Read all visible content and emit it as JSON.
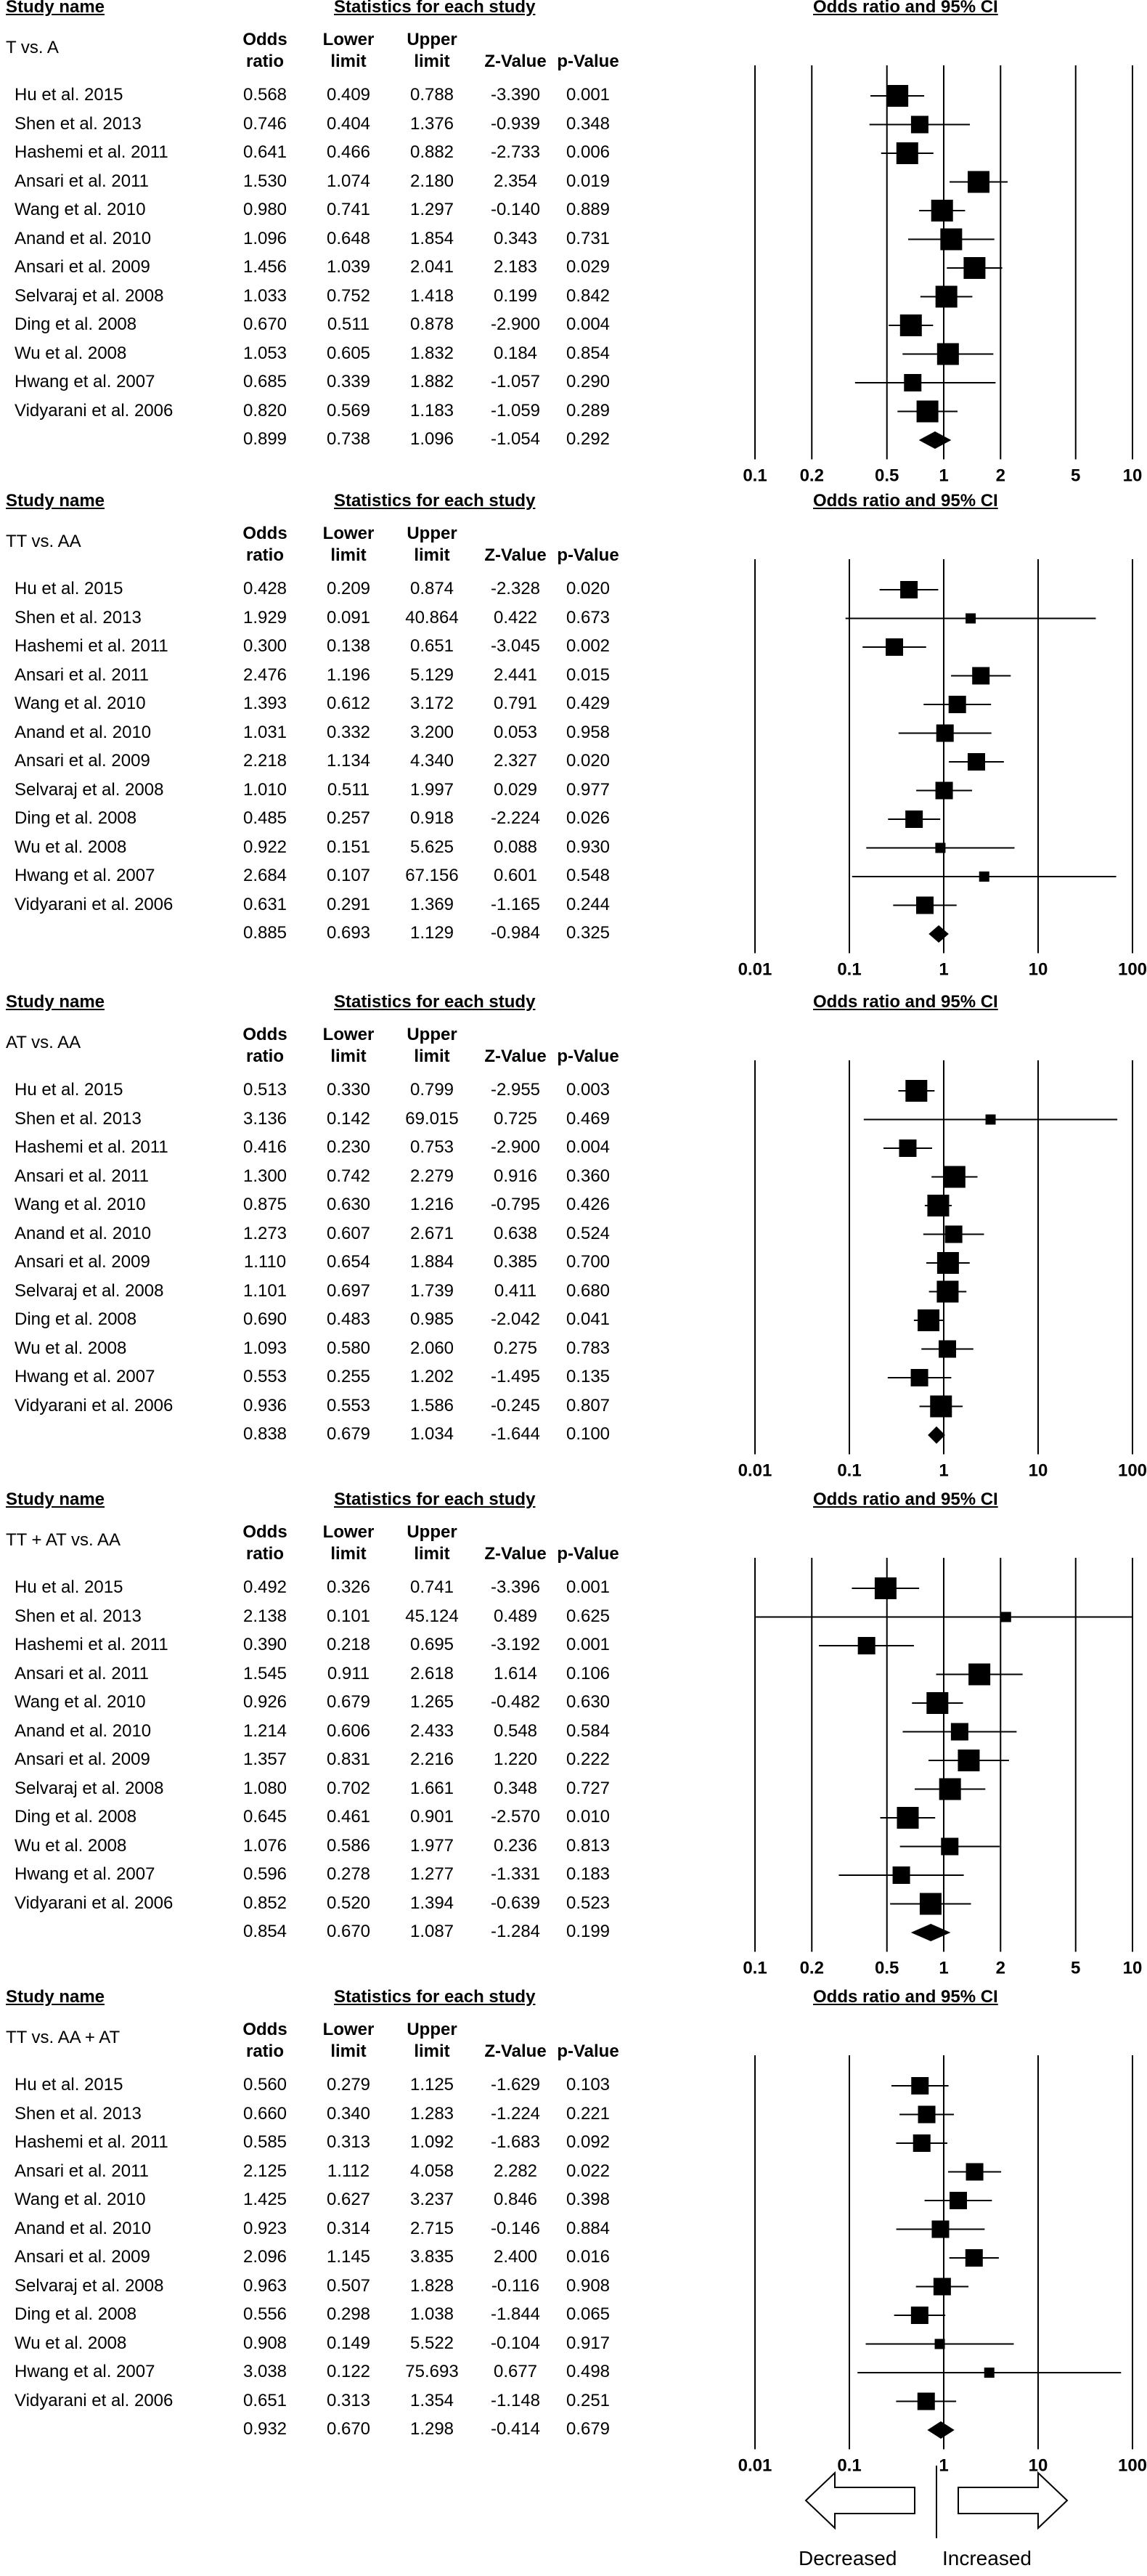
{
  "headers": {
    "study_name": "Study name",
    "stats": "Statistics for each study",
    "plot": "Odds ratio and 95% CI",
    "odds1": "Odds",
    "odds2": "ratio",
    "lower1": "Lower",
    "lower2": "limit",
    "upper1": "Upper",
    "upper2": "limit",
    "z": "Z-Value",
    "p": "p-Value"
  },
  "legend": {
    "decreased": "Decreased",
    "increased": "Increased"
  },
  "chart_data": [
    {
      "type": "forest",
      "comparison": "T vs. A",
      "scale": "log",
      "xlim": [
        0.1,
        10
      ],
      "ticks": [
        "0.1",
        "0.2",
        "0.5",
        "1",
        "2",
        "5",
        "10"
      ],
      "studies": [
        {
          "name": "Hu et al. 2015",
          "or": "0.568",
          "lo": "0.409",
          "hi": "0.788",
          "z": "-3.390",
          "p": "0.001"
        },
        {
          "name": "Shen et al. 2013",
          "or": "0.746",
          "lo": "0.404",
          "hi": "1.376",
          "z": "-0.939",
          "p": "0.348"
        },
        {
          "name": "Hashemi et al. 2011",
          "or": "0.641",
          "lo": "0.466",
          "hi": "0.882",
          "z": "-2.733",
          "p": "0.006"
        },
        {
          "name": "Ansari et al. 2011",
          "or": "1.530",
          "lo": "1.074",
          "hi": "2.180",
          "z": "2.354",
          "p": "0.019"
        },
        {
          "name": "Wang et al. 2010",
          "or": "0.980",
          "lo": "0.741",
          "hi": "1.297",
          "z": "-0.140",
          "p": "0.889"
        },
        {
          "name": "Anand et al. 2010",
          "or": "1.096",
          "lo": "0.648",
          "hi": "1.854",
          "z": "0.343",
          "p": "0.731"
        },
        {
          "name": "Ansari et al. 2009",
          "or": "1.456",
          "lo": "1.039",
          "hi": "2.041",
          "z": "2.183",
          "p": "0.029"
        },
        {
          "name": "Selvaraj et al. 2008",
          "or": "1.033",
          "lo": "0.752",
          "hi": "1.418",
          "z": "0.199",
          "p": "0.842"
        },
        {
          "name": "Ding et al. 2008",
          "or": "0.670",
          "lo": "0.511",
          "hi": "0.878",
          "z": "-2.900",
          "p": "0.004"
        },
        {
          "name": "Wu et al. 2008",
          "or": "1.053",
          "lo": "0.605",
          "hi": "1.832",
          "z": "0.184",
          "p": "0.854"
        },
        {
          "name": "Hwang et al. 2007",
          "or": "0.685",
          "lo": "0.339",
          "hi": "1.882",
          "z": "-1.057",
          "p": "0.290"
        },
        {
          "name": "Vidyarani et al. 2006",
          "or": "0.820",
          "lo": "0.569",
          "hi": "1.183",
          "z": "-1.059",
          "p": "0.289"
        }
      ],
      "pooled": {
        "or": "0.899",
        "lo": "0.738",
        "hi": "1.096",
        "z": "-1.054",
        "p": "0.292"
      }
    },
    {
      "type": "forest",
      "comparison": "TT vs. AA",
      "scale": "log",
      "xlim": [
        0.01,
        100
      ],
      "ticks": [
        "0.01",
        "0.1",
        "1",
        "10",
        "100"
      ],
      "studies": [
        {
          "name": "Hu et al. 2015",
          "or": "0.428",
          "lo": "0.209",
          "hi": "0.874",
          "z": "-2.328",
          "p": "0.020"
        },
        {
          "name": "Shen et al. 2013",
          "or": "1.929",
          "lo": "0.091",
          "hi": "40.864",
          "z": "0.422",
          "p": "0.673"
        },
        {
          "name": "Hashemi et al. 2011",
          "or": "0.300",
          "lo": "0.138",
          "hi": "0.651",
          "z": "-3.045",
          "p": "0.002"
        },
        {
          "name": "Ansari et al. 2011",
          "or": "2.476",
          "lo": "1.196",
          "hi": "5.129",
          "z": "2.441",
          "p": "0.015"
        },
        {
          "name": "Wang et al. 2010",
          "or": "1.393",
          "lo": "0.612",
          "hi": "3.172",
          "z": "0.791",
          "p": "0.429"
        },
        {
          "name": "Anand et al. 2010",
          "or": "1.031",
          "lo": "0.332",
          "hi": "3.200",
          "z": "0.053",
          "p": "0.958"
        },
        {
          "name": "Ansari et al. 2009",
          "or": "2.218",
          "lo": "1.134",
          "hi": "4.340",
          "z": "2.327",
          "p": "0.020"
        },
        {
          "name": "Selvaraj et al. 2008",
          "or": "1.010",
          "lo": "0.511",
          "hi": "1.997",
          "z": "0.029",
          "p": "0.977"
        },
        {
          "name": "Ding et al. 2008",
          "or": "0.485",
          "lo": "0.257",
          "hi": "0.918",
          "z": "-2.224",
          "p": "0.026"
        },
        {
          "name": "Wu et al. 2008",
          "or": "0.922",
          "lo": "0.151",
          "hi": "5.625",
          "z": "0.088",
          "p": "0.930"
        },
        {
          "name": "Hwang et al. 2007",
          "or": "2.684",
          "lo": "0.107",
          "hi": "67.156",
          "z": "0.601",
          "p": "0.548"
        },
        {
          "name": "Vidyarani et al. 2006",
          "or": "0.631",
          "lo": "0.291",
          "hi": "1.369",
          "z": "-1.165",
          "p": "0.244"
        }
      ],
      "pooled": {
        "or": "0.885",
        "lo": "0.693",
        "hi": "1.129",
        "z": "-0.984",
        "p": "0.325"
      }
    },
    {
      "type": "forest",
      "comparison": "AT vs. AA",
      "scale": "log",
      "xlim": [
        0.01,
        100
      ],
      "ticks": [
        "0.01",
        "0.1",
        "1",
        "10",
        "100"
      ],
      "studies": [
        {
          "name": "Hu et al. 2015",
          "or": "0.513",
          "lo": "0.330",
          "hi": "0.799",
          "z": "-2.955",
          "p": "0.003"
        },
        {
          "name": "Shen et al. 2013",
          "or": "3.136",
          "lo": "0.142",
          "hi": "69.015",
          "z": "0.725",
          "p": "0.469"
        },
        {
          "name": "Hashemi et al. 2011",
          "or": "0.416",
          "lo": "0.230",
          "hi": "0.753",
          "z": "-2.900",
          "p": "0.004"
        },
        {
          "name": "Ansari et al. 2011",
          "or": "1.300",
          "lo": "0.742",
          "hi": "2.279",
          "z": "0.916",
          "p": "0.360"
        },
        {
          "name": "Wang et al. 2010",
          "or": "0.875",
          "lo": "0.630",
          "hi": "1.216",
          "z": "-0.795",
          "p": "0.426"
        },
        {
          "name": "Anand et al. 2010",
          "or": "1.273",
          "lo": "0.607",
          "hi": "2.671",
          "z": "0.638",
          "p": "0.524"
        },
        {
          "name": "Ansari et al. 2009",
          "or": "1.110",
          "lo": "0.654",
          "hi": "1.884",
          "z": "0.385",
          "p": "0.700"
        },
        {
          "name": "Selvaraj et al. 2008",
          "or": "1.101",
          "lo": "0.697",
          "hi": "1.739",
          "z": "0.411",
          "p": "0.680"
        },
        {
          "name": "Ding et al. 2008",
          "or": "0.690",
          "lo": "0.483",
          "hi": "0.985",
          "z": "-2.042",
          "p": "0.041"
        },
        {
          "name": "Wu et al. 2008",
          "or": "1.093",
          "lo": "0.580",
          "hi": "2.060",
          "z": "0.275",
          "p": "0.783"
        },
        {
          "name": "Hwang et al. 2007",
          "or": "0.553",
          "lo": "0.255",
          "hi": "1.202",
          "z": "-1.495",
          "p": "0.135"
        },
        {
          "name": "Vidyarani et al. 2006",
          "or": "0.936",
          "lo": "0.553",
          "hi": "1.586",
          "z": "-0.245",
          "p": "0.807"
        }
      ],
      "pooled": {
        "or": "0.838",
        "lo": "0.679",
        "hi": "1.034",
        "z": "-1.644",
        "p": "0.100"
      }
    },
    {
      "type": "forest",
      "comparison": "TT + AT vs. AA",
      "scale": "log",
      "xlim": [
        0.1,
        10
      ],
      "ticks": [
        "0.1",
        "0.2",
        "0.5",
        "1",
        "2",
        "5",
        "10"
      ],
      "studies": [
        {
          "name": "Hu et al. 2015",
          "or": "0.492",
          "lo": "0.326",
          "hi": "0.741",
          "z": "-3.396",
          "p": "0.001"
        },
        {
          "name": "Shen et al. 2013",
          "or": "2.138",
          "lo": "0.101",
          "hi": "45.124",
          "z": "0.489",
          "p": "0.625"
        },
        {
          "name": "Hashemi et al. 2011",
          "or": "0.390",
          "lo": "0.218",
          "hi": "0.695",
          "z": "-3.192",
          "p": "0.001"
        },
        {
          "name": "Ansari et al. 2011",
          "or": "1.545",
          "lo": "0.911",
          "hi": "2.618",
          "z": "1.614",
          "p": "0.106"
        },
        {
          "name": "Wang et al. 2010",
          "or": "0.926",
          "lo": "0.679",
          "hi": "1.265",
          "z": "-0.482",
          "p": "0.630"
        },
        {
          "name": "Anand et al. 2010",
          "or": "1.214",
          "lo": "0.606",
          "hi": "2.433",
          "z": "0.548",
          "p": "0.584"
        },
        {
          "name": "Ansari et al. 2009",
          "or": "1.357",
          "lo": "0.831",
          "hi": "2.216",
          "z": "1.220",
          "p": "0.222"
        },
        {
          "name": "Selvaraj et al. 2008",
          "or": "1.080",
          "lo": "0.702",
          "hi": "1.661",
          "z": "0.348",
          "p": "0.727"
        },
        {
          "name": "Ding et al. 2008",
          "or": "0.645",
          "lo": "0.461",
          "hi": "0.901",
          "z": "-2.570",
          "p": "0.010"
        },
        {
          "name": "Wu et al. 2008",
          "or": "1.076",
          "lo": "0.586",
          "hi": "1.977",
          "z": "0.236",
          "p": "0.813"
        },
        {
          "name": "Hwang et al. 2007",
          "or": "0.596",
          "lo": "0.278",
          "hi": "1.277",
          "z": "-1.331",
          "p": "0.183"
        },
        {
          "name": "Vidyarani et al. 2006",
          "or": "0.852",
          "lo": "0.520",
          "hi": "1.394",
          "z": "-0.639",
          "p": "0.523"
        }
      ],
      "pooled": {
        "or": "0.854",
        "lo": "0.670",
        "hi": "1.087",
        "z": "-1.284",
        "p": "0.199"
      }
    },
    {
      "type": "forest",
      "comparison": "TT vs. AA + AT",
      "scale": "log",
      "xlim": [
        0.01,
        100
      ],
      "ticks": [
        "0.01",
        "0.1",
        "1",
        "10",
        "100"
      ],
      "studies": [
        {
          "name": "Hu et al. 2015",
          "or": "0.560",
          "lo": "0.279",
          "hi": "1.125",
          "z": "-1.629",
          "p": "0.103"
        },
        {
          "name": "Shen et al. 2013",
          "or": "0.660",
          "lo": "0.340",
          "hi": "1.283",
          "z": "-1.224",
          "p": "0.221"
        },
        {
          "name": "Hashemi et al. 2011",
          "or": "0.585",
          "lo": "0.313",
          "hi": "1.092",
          "z": "-1.683",
          "p": "0.092"
        },
        {
          "name": "Ansari et al. 2011",
          "or": "2.125",
          "lo": "1.112",
          "hi": "4.058",
          "z": "2.282",
          "p": "0.022"
        },
        {
          "name": "Wang et al. 2010",
          "or": "1.425",
          "lo": "0.627",
          "hi": "3.237",
          "z": "0.846",
          "p": "0.398"
        },
        {
          "name": "Anand et al. 2010",
          "or": "0.923",
          "lo": "0.314",
          "hi": "2.715",
          "z": "-0.146",
          "p": "0.884"
        },
        {
          "name": "Ansari et al. 2009",
          "or": "2.096",
          "lo": "1.145",
          "hi": "3.835",
          "z": "2.400",
          "p": "0.016"
        },
        {
          "name": "Selvaraj et al. 2008",
          "or": "0.963",
          "lo": "0.507",
          "hi": "1.828",
          "z": "-0.116",
          "p": "0.908"
        },
        {
          "name": "Ding et al. 2008",
          "or": "0.556",
          "lo": "0.298",
          "hi": "1.038",
          "z": "-1.844",
          "p": "0.065"
        },
        {
          "name": "Wu et al. 2008",
          "or": "0.908",
          "lo": "0.149",
          "hi": "5.522",
          "z": "-0.104",
          "p": "0.917"
        },
        {
          "name": "Hwang et al. 2007",
          "or": "3.038",
          "lo": "0.122",
          "hi": "75.693",
          "z": "0.677",
          "p": "0.498"
        },
        {
          "name": "Vidyarani et al. 2006",
          "or": "0.651",
          "lo": "0.313",
          "hi": "1.354",
          "z": "-1.148",
          "p": "0.251"
        }
      ],
      "pooled": {
        "or": "0.932",
        "lo": "0.670",
        "hi": "1.298",
        "z": "-0.414",
        "p": "0.679"
      }
    }
  ]
}
